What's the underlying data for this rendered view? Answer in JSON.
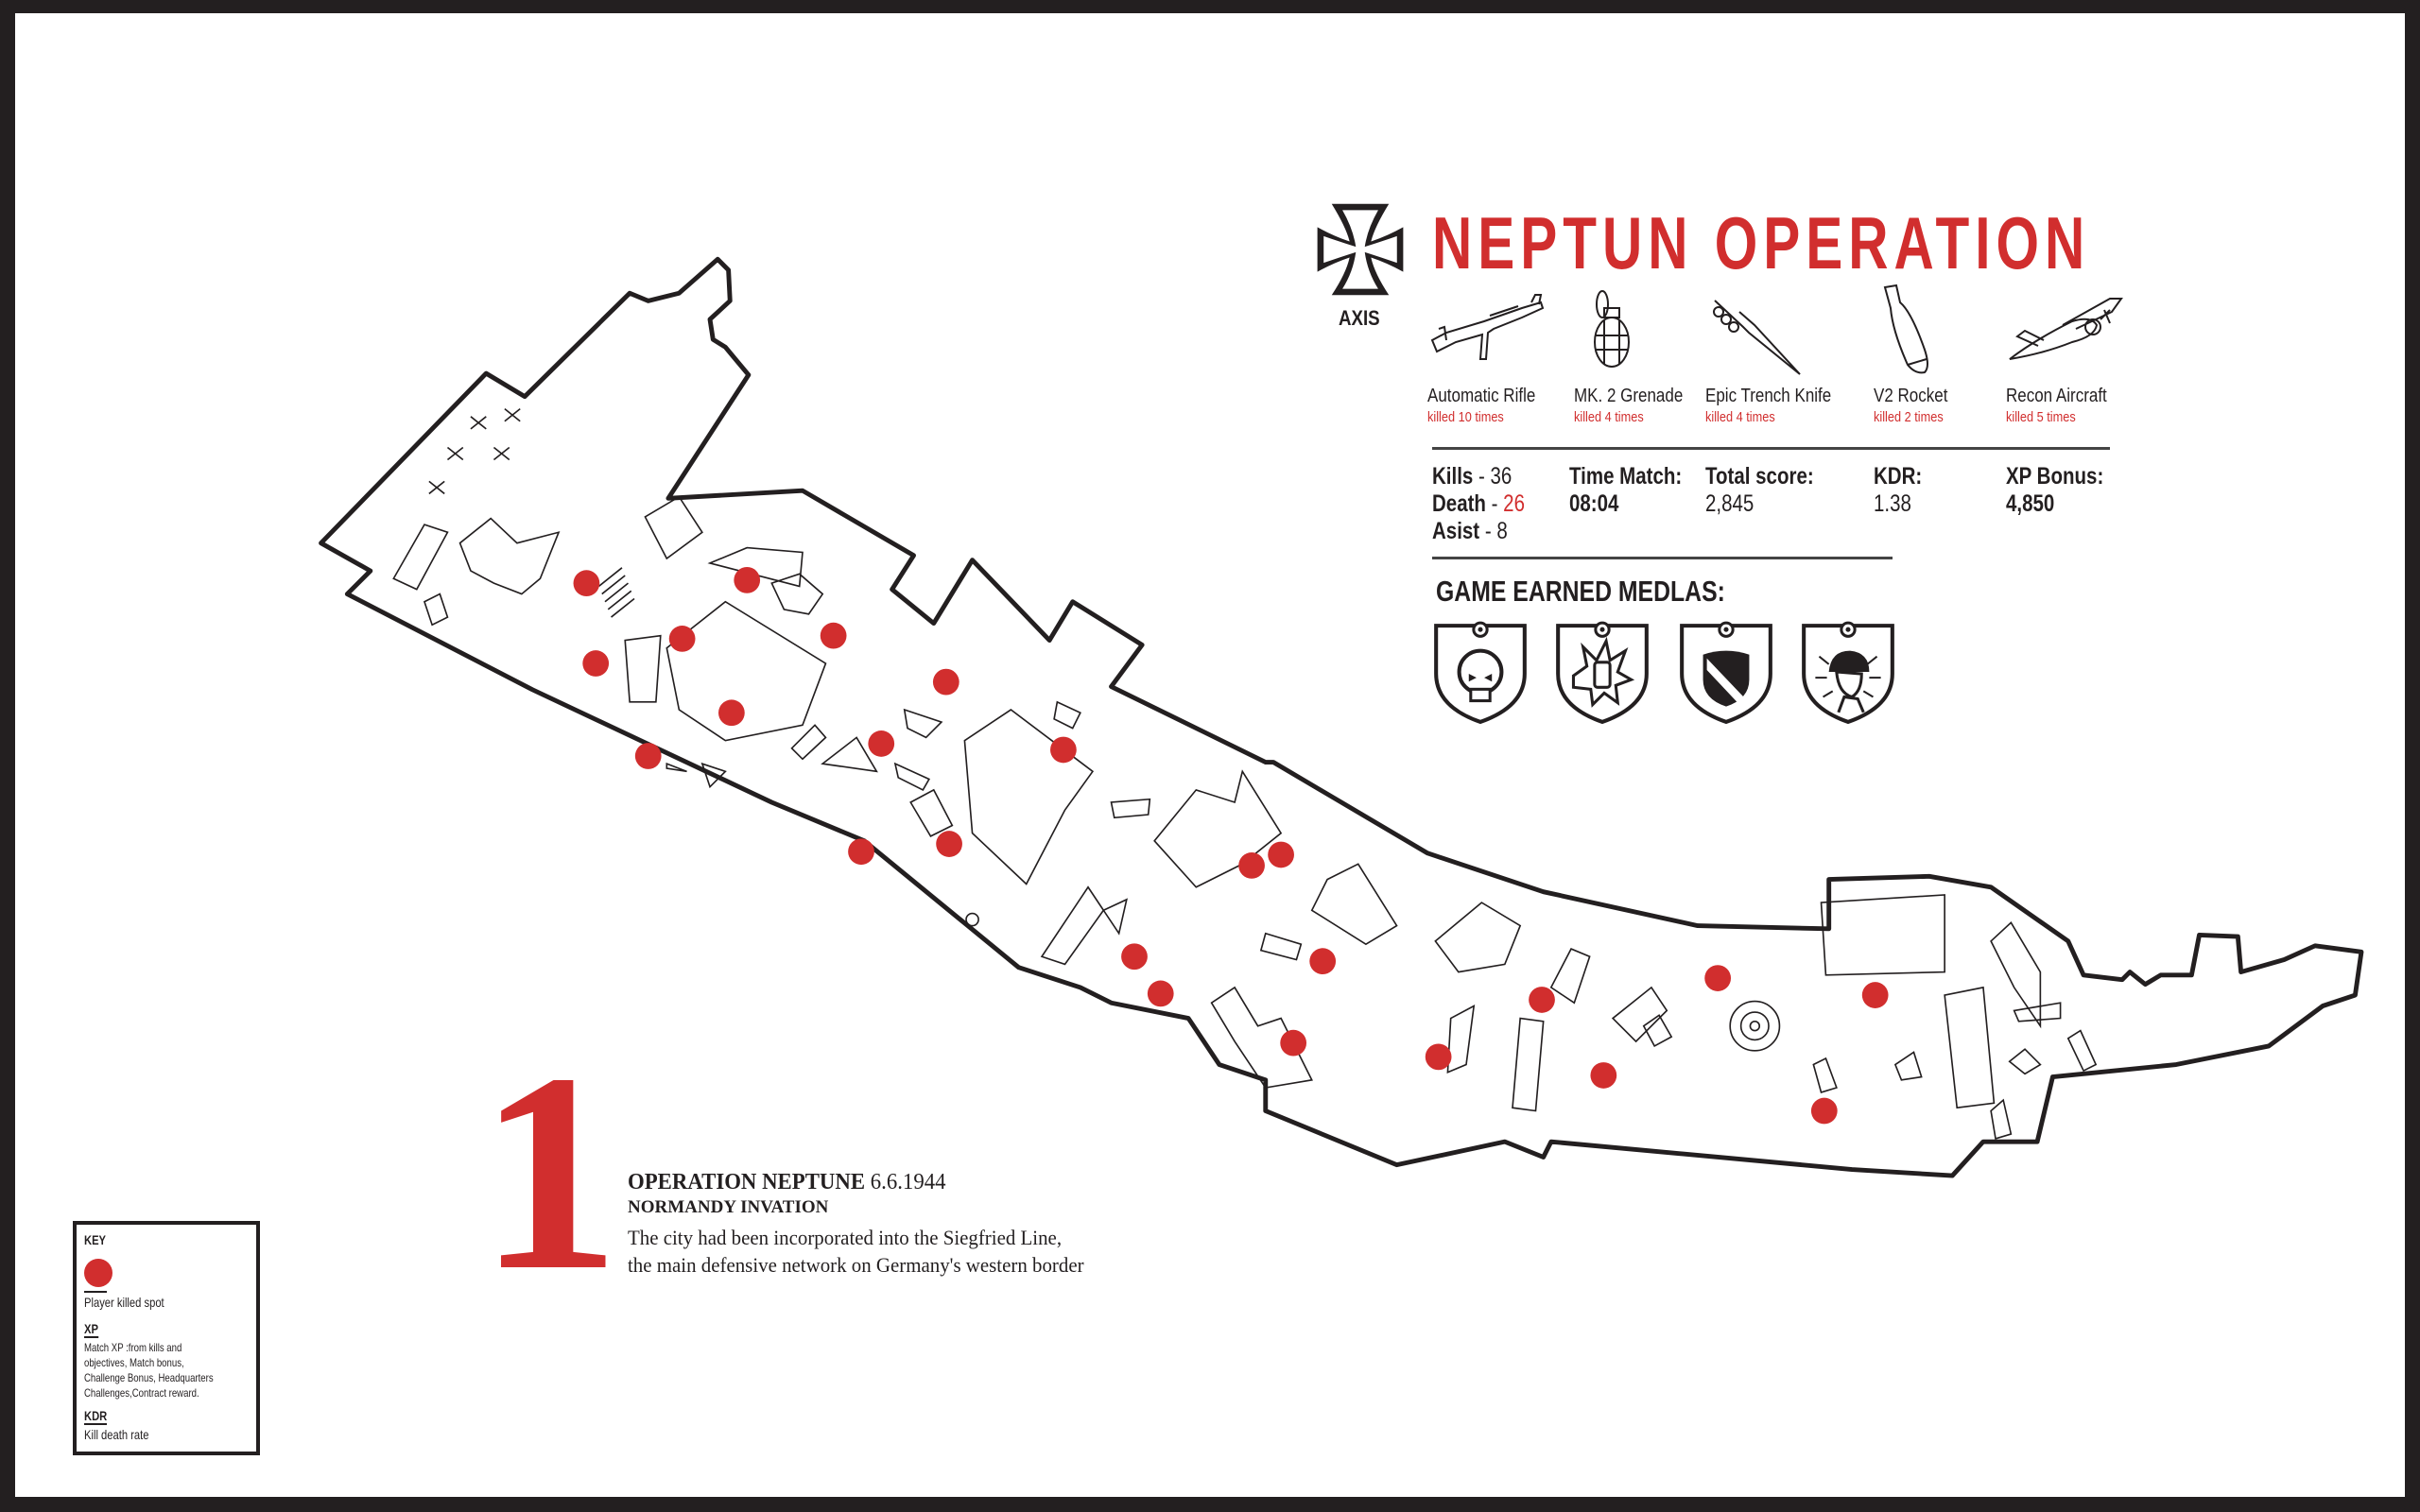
{
  "header": {
    "title": "NEPTUN OPERATION",
    "faction": "AXIS",
    "faction_icon": "iron-cross-icon"
  },
  "weapons": [
    {
      "name": "Automatic Rifle",
      "kills": "killed 10 times",
      "icon": "rifle-icon"
    },
    {
      "name": "MK. 2 Grenade",
      "kills": "killed 4 times",
      "icon": "grenade-icon"
    },
    {
      "name": "Epic Trench Knife",
      "kills": "killed 4 times",
      "icon": "trench-knife-icon"
    },
    {
      "name": "V2 Rocket",
      "kills": "killed 2 times",
      "icon": "rocket-icon"
    },
    {
      "name": "Recon Aircraft",
      "kills": "killed 5 times",
      "icon": "aircraft-icon"
    }
  ],
  "stats": {
    "kills_label": "Kills",
    "kills": "36",
    "death_label": "Death",
    "death": "26",
    "asist_label": "Asist",
    "asist": "8",
    "sep": " - ",
    "time_label": "Time Match:",
    "time": "08:04",
    "score_label": "Total score:",
    "score": "2,845",
    "kdr_label": "KDR:",
    "kdr": "1.38",
    "xp_label": "XP Bonus:",
    "xp": "4,850"
  },
  "medals": {
    "heading": "GAME EARNED MEDLAS:",
    "icons": [
      "skull-medal-icon",
      "fist-explosion-medal-icon",
      "shield-stripe-medal-icon",
      "soldier-medal-icon"
    ]
  },
  "story": {
    "number": "1",
    "title": "OPERATION NEPTUNE",
    "date": "6.6.1944",
    "subtitle": "NORMANDY INVATION",
    "line1": "The city had been incorporated into the Siegfried Line,",
    "line2": "the main defensive network on Germany's western border"
  },
  "key": {
    "heading": "KEY",
    "marker_label": "Player killed spot",
    "xp_heading": "XP",
    "xp_lines": [
      "Match XP :from kills and",
      "objectives, Match bonus,",
      "Challenge Bonus, Headquarters",
      "Challenges,Contract reward."
    ],
    "kdr_heading": "KDR",
    "kdr_text": "Kill death rate"
  },
  "colors": {
    "accent": "#d12e2e",
    "ink": "#231f20",
    "frame": "#231f20"
  }
}
